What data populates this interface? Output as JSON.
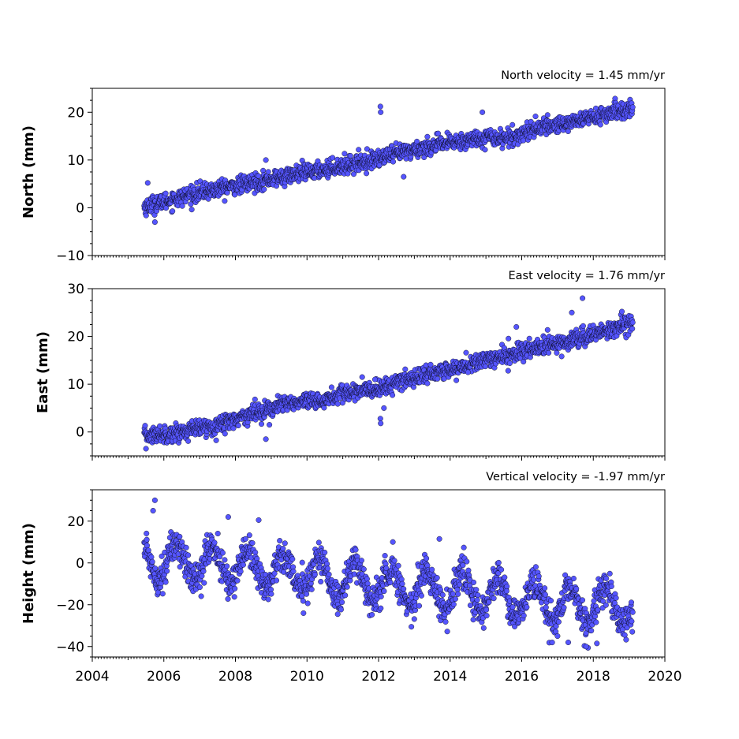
{
  "chart_data": [
    {
      "type": "scatter",
      "title": "North velocity = 1.45 mm/yr",
      "ylabel": "North (mm)",
      "xlabel": "",
      "xlim": [
        2004,
        2020
      ],
      "ylim": [
        -10,
        25
      ],
      "x_ticks": [
        "2004",
        "2006",
        "2008",
        "2010",
        "2012",
        "2014",
        "2016",
        "2018",
        "2020"
      ],
      "y_ticks": [
        "−10",
        "0",
        "10",
        "20"
      ],
      "marker_color": "#5555ff",
      "series": [
        {
          "x_start": 2005.45,
          "x_end": 2019.1,
          "trend": [
            [
              2005.45,
              0.2
            ],
            [
              2007.0,
              3.2
            ],
            [
              2009.0,
              6.0
            ],
            [
              2011.0,
              8.8
            ],
            [
              2012.0,
              10.3
            ],
            [
              2013.0,
              12.2
            ],
            [
              2014.0,
              13.6
            ],
            [
              2015.0,
              14.8
            ],
            [
              2015.7,
              14.6
            ],
            [
              2016.3,
              16.5
            ],
            [
              2017.0,
              17.4
            ],
            [
              2018.0,
              19.0
            ],
            [
              2019.1,
              20.8
            ]
          ],
          "scatter_sd": 0.9,
          "outliers": [
            [
              2005.55,
              5.2
            ],
            [
              2012.05,
              21.2
            ],
            [
              2012.06,
              20.0
            ],
            [
              2014.9,
              20.0
            ],
            [
              2012.7,
              6.5
            ],
            [
              2008.85,
              10.0
            ],
            [
              2005.75,
              -3.0
            ]
          ]
        }
      ]
    },
    {
      "type": "scatter",
      "title": "East velocity = 1.76 mm/yr",
      "ylabel": "East (mm)",
      "xlabel": "",
      "xlim": [
        2004,
        2020
      ],
      "ylim": [
        -5,
        30
      ],
      "x_ticks": [
        "2004",
        "2006",
        "2008",
        "2010",
        "2012",
        "2014",
        "2016",
        "2018",
        "2020"
      ],
      "y_ticks": [
        "0",
        "10",
        "20",
        "30"
      ],
      "marker_color": "#5555ff",
      "series": [
        {
          "x_start": 2005.45,
          "x_end": 2019.1,
          "trend": [
            [
              2005.45,
              -0.8
            ],
            [
              2006.5,
              0.0
            ],
            [
              2007.5,
              1.5
            ],
            [
              2008.5,
              4.0
            ],
            [
              2009.5,
              6.0
            ],
            [
              2010.3,
              6.3
            ],
            [
              2011.0,
              8.0
            ],
            [
              2012.0,
              9.0
            ],
            [
              2013.0,
              11.5
            ],
            [
              2014.0,
              13.0
            ],
            [
              2015.0,
              15.0
            ],
            [
              2016.0,
              16.8
            ],
            [
              2017.0,
              18.5
            ],
            [
              2018.0,
              20.5
            ],
            [
              2019.1,
              22.8
            ]
          ],
          "scatter_sd": 0.9,
          "outliers": [
            [
              2012.05,
              2.8
            ],
            [
              2012.06,
              1.8
            ],
            [
              2012.15,
              5.0
            ],
            [
              2017.7,
              28.0
            ],
            [
              2017.4,
              25.0
            ],
            [
              2018.8,
              25.2
            ],
            [
              2008.85,
              -1.5
            ],
            [
              2008.95,
              1.5
            ],
            [
              2015.85,
              22.0
            ],
            [
              2005.5,
              -3.5
            ],
            [
              2011.9,
              11.0
            ],
            [
              2014.5,
              12.5
            ]
          ]
        }
      ]
    },
    {
      "type": "scatter",
      "title": "Vertical velocity = -1.97 mm/yr",
      "ylabel": "Height (mm)",
      "xlabel": "",
      "xlim": [
        2004,
        2020
      ],
      "ylim": [
        -45,
        35
      ],
      "x_ticks": [
        "2004",
        "2006",
        "2008",
        "2010",
        "2012",
        "2014",
        "2016",
        "2018",
        "2020"
      ],
      "y_ticks": [
        "−40",
        "−20",
        "0",
        "20"
      ],
      "marker_color": "#5555ff",
      "series": [
        {
          "x_start": 2005.45,
          "x_end": 2019.1,
          "trend": [
            [
              2005.45,
              2.0
            ],
            [
              2007.0,
              0.0
            ],
            [
              2009.0,
              -3.0
            ],
            [
              2011.0,
              -8.0
            ],
            [
              2013.0,
              -12.0
            ],
            [
              2015.0,
              -15.0
            ],
            [
              2017.0,
              -20.0
            ],
            [
              2019.1,
              -22.0
            ]
          ],
          "seasonal_amplitude": 8.5,
          "scatter_sd": 4.0,
          "outliers": [
            [
              2005.75,
              30.0
            ],
            [
              2005.7,
              25.0
            ],
            [
              2007.8,
              22.0
            ],
            [
              2008.65,
              20.5
            ],
            [
              2013.7,
              11.5
            ],
            [
              2017.8,
              -40.0
            ],
            [
              2017.3,
              -38.0
            ],
            [
              2017.0,
              -35.0
            ],
            [
              2018.1,
              -38.5
            ]
          ]
        }
      ]
    }
  ]
}
